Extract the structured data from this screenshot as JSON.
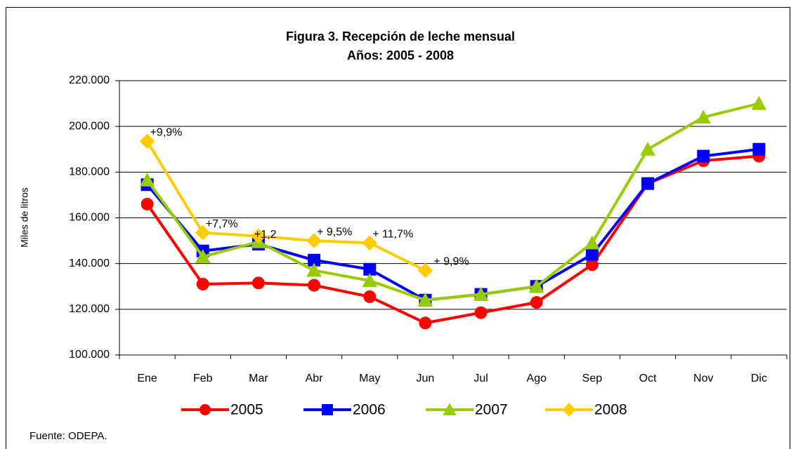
{
  "chart_data": {
    "type": "line",
    "title": "Figura 3. Recepción de leche mensual",
    "subtitle": "Años: 2005 - 2008",
    "y_label": "Miles de litros",
    "source": "Fuente: ODEPA.",
    "categories": [
      "Ene",
      "Feb",
      "Mar",
      "Abr",
      "May",
      "Jun",
      "Jul",
      "Ago",
      "Sep",
      "Oct",
      "Nov",
      "Dic"
    ],
    "series": [
      {
        "name": "2005",
        "color": "#ff0000",
        "marker": "circle",
        "values": [
          166000,
          131000,
          131500,
          130500,
          125500,
          114000,
          118500,
          123000,
          139500,
          175000,
          185000,
          187000
        ]
      },
      {
        "name": "2006",
        "color": "#0000ff",
        "marker": "square",
        "values": [
          174500,
          145500,
          148500,
          141500,
          137500,
          124000,
          126500,
          130000,
          144000,
          175000,
          187000,
          190000
        ]
      },
      {
        "name": "2007",
        "color": "#99cc00",
        "marker": "triangle",
        "values": [
          176500,
          143000,
          149500,
          137000,
          132500,
          124000,
          126500,
          130000,
          149000,
          190000,
          204000,
          210000
        ]
      },
      {
        "name": "2008",
        "color": "#ffcc00",
        "marker": "diamond",
        "values": [
          193500,
          153500,
          152000,
          150000,
          149000,
          137000,
          null,
          null,
          null,
          null,
          null,
          null
        ]
      }
    ],
    "annotations": [
      "+9,9%",
      "+7,7%",
      "+1,2",
      "+ 9,5%",
      "+ 11,7%",
      "+ 9,9%"
    ],
    "ylim": [
      100000,
      220000
    ],
    "yticks": [
      {
        "value": 100000,
        "label": "100.000"
      },
      {
        "value": 120000,
        "label": "120.000"
      },
      {
        "value": 140000,
        "label": "140.000"
      },
      {
        "value": 160000,
        "label": "160.000"
      },
      {
        "value": 180000,
        "label": "180.000"
      },
      {
        "value": 200000,
        "label": "200.000"
      },
      {
        "value": 220000,
        "label": "220.000"
      }
    ],
    "grid": true,
    "legend": "bottom"
  }
}
